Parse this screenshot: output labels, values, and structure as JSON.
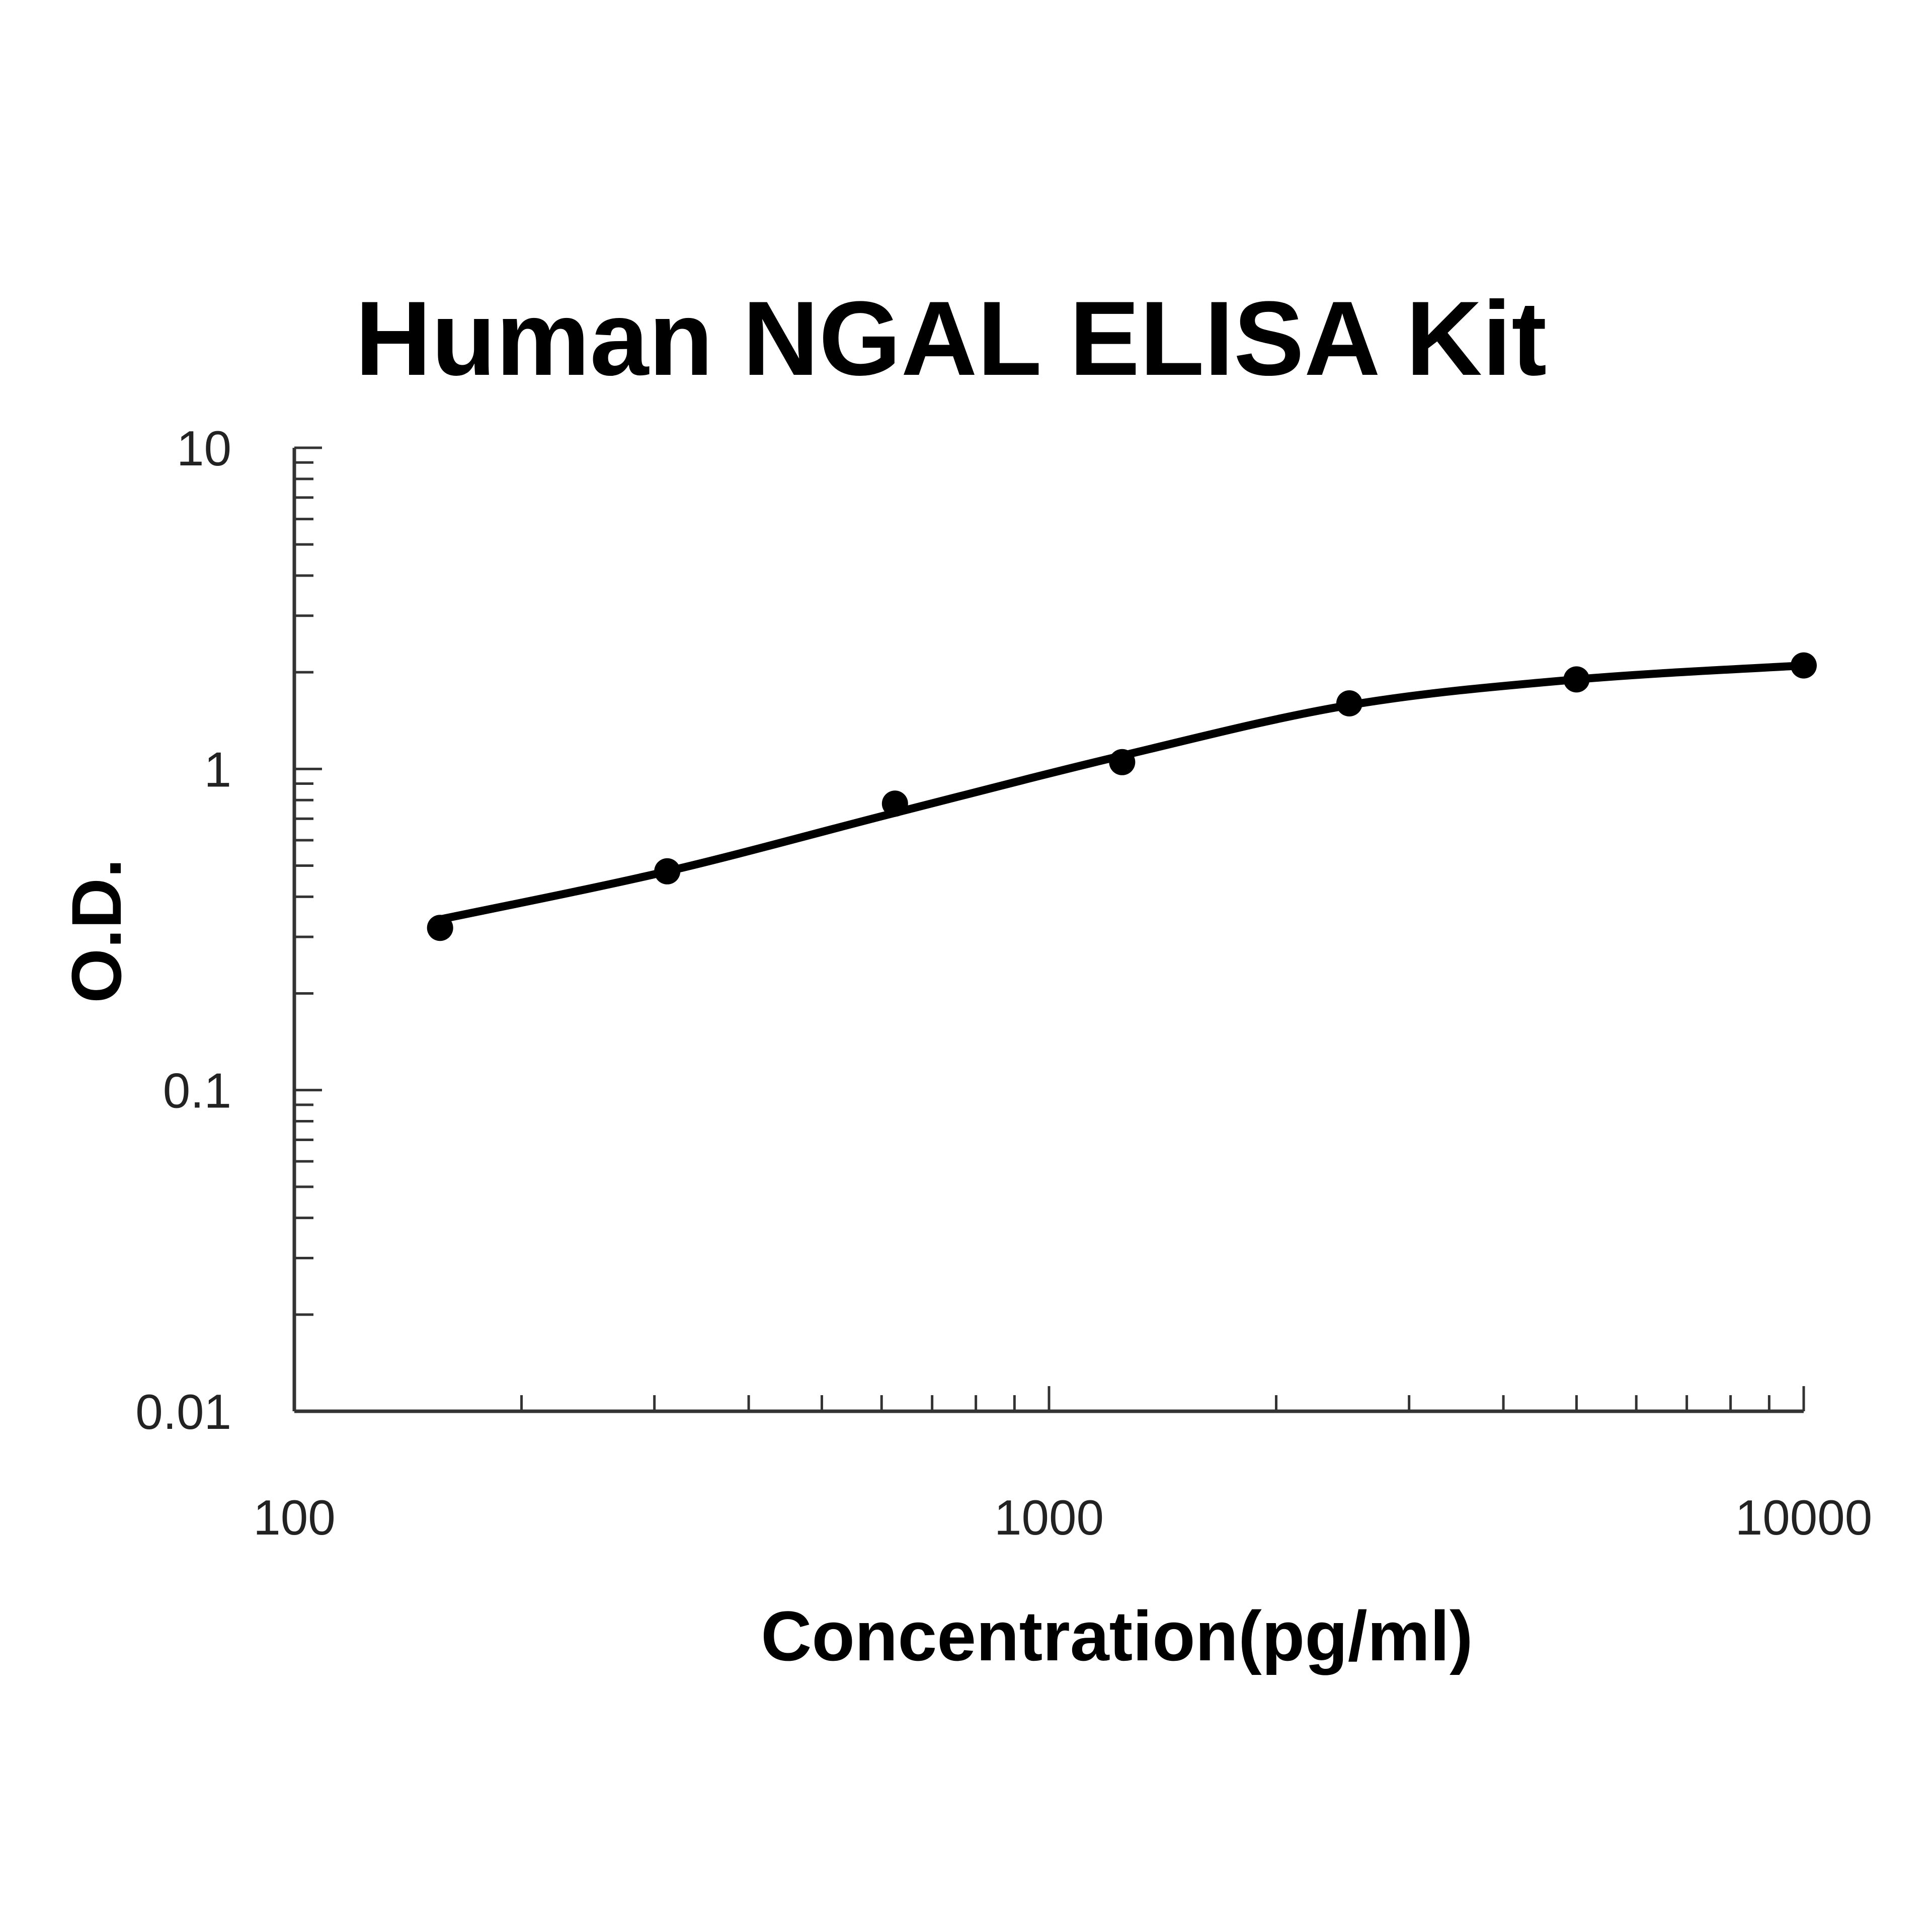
{
  "chart_data": {
    "type": "scatter",
    "title": "Human NGAL ELISA Kit",
    "xlabel": "Concentration(pg/ml)",
    "ylabel": "O.D.",
    "x_scale": "log",
    "y_scale": "log",
    "xlim": [
      100,
      10000
    ],
    "ylim": [
      0.01,
      10
    ],
    "x_ticks": [
      {
        "value": 100,
        "label": "100"
      },
      {
        "value": 1000,
        "label": "1000"
      },
      {
        "value": 10000,
        "label": "10000"
      }
    ],
    "y_ticks": [
      {
        "value": 0.01,
        "label": "0.01"
      },
      {
        "value": 0.1,
        "label": "0.1"
      },
      {
        "value": 1,
        "label": "1"
      },
      {
        "value": 10,
        "label": "10"
      }
    ],
    "grid": false,
    "legend": "none",
    "series": [
      {
        "points": [
          {
            "x": 156,
            "y": 0.32
          },
          {
            "x": 312,
            "y": 0.48
          },
          {
            "x": 625,
            "y": 0.78
          },
          {
            "x": 1250,
            "y": 1.05
          },
          {
            "x": 2500,
            "y": 1.6
          },
          {
            "x": 5000,
            "y": 1.9
          },
          {
            "x": 10000,
            "y": 2.1
          }
        ],
        "fit_curve": [
          {
            "x": 156,
            "y": 0.34
          },
          {
            "x": 312,
            "y": 0.48
          },
          {
            "x": 625,
            "y": 0.73
          },
          {
            "x": 1250,
            "y": 1.1
          },
          {
            "x": 2500,
            "y": 1.58
          },
          {
            "x": 5000,
            "y": 1.9
          },
          {
            "x": 10000,
            "y": 2.1
          }
        ]
      }
    ],
    "colors": {
      "marker": "#000000",
      "line": "#000000",
      "axis": "#333333"
    }
  }
}
